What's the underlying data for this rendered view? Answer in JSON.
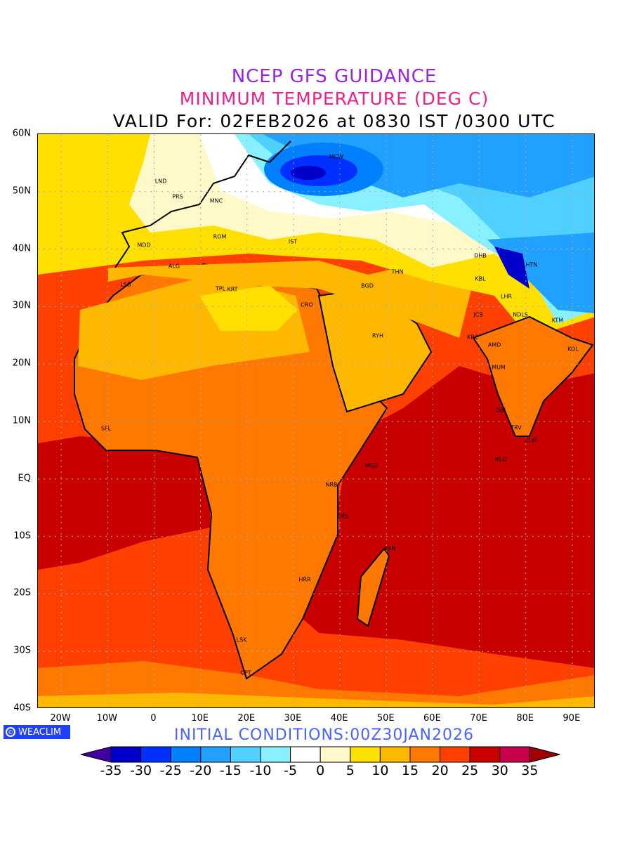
{
  "header": {
    "line1": "NCEP GFS GUIDANCE",
    "line2": "MINIMUM TEMPERATURE (DEG C)",
    "line3": "VALID For: 02FEB2026 at 0830 IST /0300 UTC"
  },
  "axes": {
    "lat_labels": [
      "60N",
      "50N",
      "40N",
      "30N",
      "20N",
      "10N",
      "EQ",
      "10S",
      "20S",
      "30S",
      "40S"
    ],
    "lon_labels": [
      "20W",
      "10W",
      "0",
      "10E",
      "20E",
      "30E",
      "40E",
      "50E",
      "60E",
      "70E",
      "80E",
      "90E"
    ]
  },
  "cities": [
    "LND",
    "PRS",
    "MNC",
    "ROM",
    "MDD",
    "ALG",
    "LSB",
    "TPL",
    "KRT",
    "IST",
    "MCW",
    "CRO",
    "BGD",
    "THN",
    "RYH",
    "DHB",
    "KBL",
    "HTN",
    "LHR",
    "JCB",
    "NDLS",
    "KTM",
    "KRC",
    "AMD",
    "MUM",
    "DBI",
    "TRV",
    "CLM",
    "MLD",
    "KOL",
    "MGD",
    "NRB",
    "DRS",
    "ANN",
    "HRR",
    "LSK",
    "CPT",
    "SFL"
  ],
  "footer": {
    "logo": "WEACLIM",
    "logo_symbol": "©",
    "initial_conditions": "INITIAL CONDITIONS:00Z30JAN2026"
  },
  "colorbar": {
    "under_color": "#4000a0",
    "over_color": "#a00000",
    "colors": [
      "#0000c8",
      "#0030ff",
      "#0080ff",
      "#20a0ff",
      "#50d0ff",
      "#88f0ff",
      "#ffffff",
      "#fff8c8",
      "#ffe000",
      "#ffb800",
      "#ff7800",
      "#ff4000",
      "#c80000",
      "#c8004c"
    ],
    "labels": [
      "-35",
      "-30",
      "-25",
      "-20",
      "-15",
      "-10",
      "-5",
      "0",
      "5",
      "10",
      "15",
      "20",
      "25",
      "30",
      "35"
    ]
  }
}
